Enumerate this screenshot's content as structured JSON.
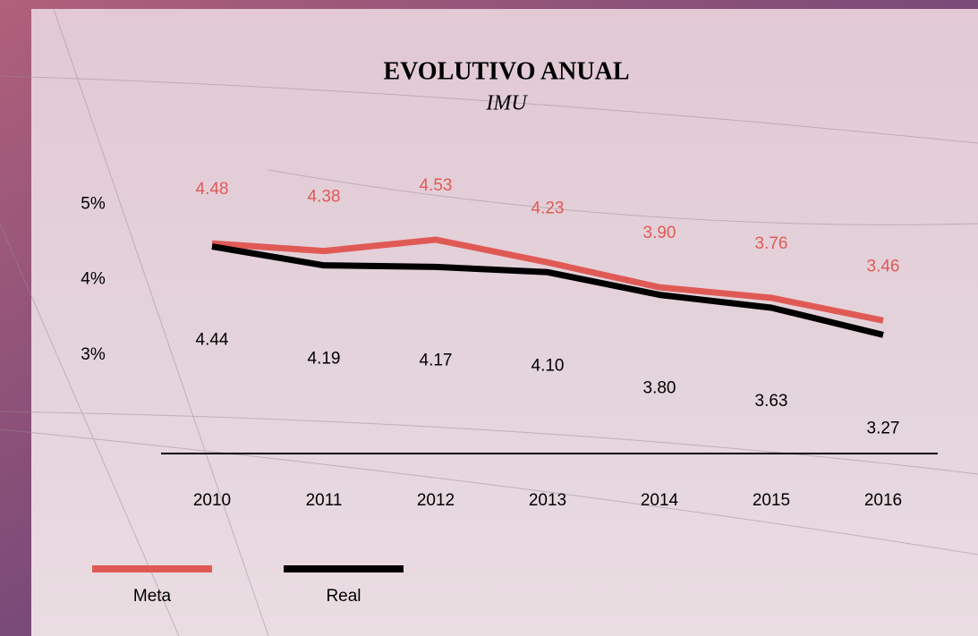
{
  "chart_data": {
    "type": "line",
    "title": "EVOLUTIVO ANUAL",
    "subtitle": "IMU",
    "categories": [
      "2010",
      "2011",
      "2012",
      "2013",
      "2014",
      "2015",
      "2016"
    ],
    "series": [
      {
        "name": "Meta",
        "color": "#e05a55",
        "values": [
          4.48,
          4.38,
          4.53,
          4.23,
          3.9,
          3.76,
          3.46
        ],
        "value_labels": [
          "4.48",
          "4.38",
          "4.53",
          "4.23",
          "3.90",
          "3.76",
          "3.46"
        ]
      },
      {
        "name": "Real",
        "color": "#000000",
        "values": [
          4.44,
          4.19,
          4.17,
          4.1,
          3.8,
          3.63,
          3.27
        ],
        "value_labels": [
          "4.44",
          "4.19",
          "4.17",
          "4.10",
          "3.80",
          "3.63",
          "3.27"
        ]
      }
    ],
    "ylim": [
      1.7,
      5.5
    ],
    "yticks": [
      {
        "value": 5,
        "label": "5%"
      },
      {
        "value": 4,
        "label": "4%"
      },
      {
        "value": 3,
        "label": "3%"
      }
    ]
  }
}
